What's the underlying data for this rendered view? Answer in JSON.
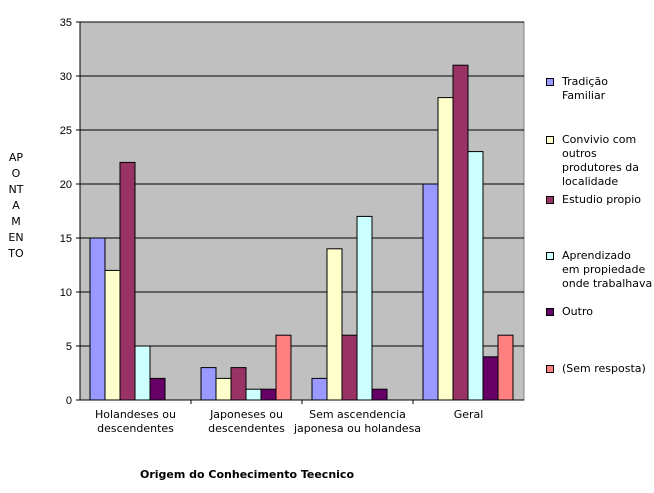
{
  "chart_data": {
    "type": "bar",
    "title": "",
    "xlabel": "Origem do Conhecimento Teecnico",
    "ylabel": "APONTAMENTO",
    "ylim": [
      0,
      35
    ],
    "yticks": [
      0,
      5,
      10,
      15,
      20,
      25,
      30,
      35
    ],
    "grid": true,
    "legend_position": "right",
    "plot_background": "#c0c0c0",
    "categories": [
      [
        "Holandeses ou",
        "descendentes"
      ],
      [
        "Japoneses ou",
        "descendentes"
      ],
      [
        "Sem ascendencia",
        "japonesa ou holandesa"
      ],
      [
        "Geral"
      ]
    ],
    "series": [
      {
        "name": [
          "Tradição",
          "Familiar"
        ],
        "color": "#9999ff",
        "values": [
          15,
          3,
          2,
          20
        ]
      },
      {
        "name": [
          "Convivio com",
          "outros",
          "produtores da",
          "localidade"
        ],
        "color": "#ffffcc",
        "values": [
          12,
          2,
          14,
          28
        ]
      },
      {
        "name": [
          "Estudio propio"
        ],
        "color": "#993366",
        "values": [
          22,
          3,
          6,
          31
        ]
      },
      {
        "name": [
          "Aprendizado",
          "em propiedade",
          "onde trabalhava"
        ],
        "color": "#ccffff",
        "values": [
          5,
          1,
          17,
          23
        ]
      },
      {
        "name": [
          "Outro"
        ],
        "color": "#660066",
        "values": [
          2,
          1,
          1,
          4
        ]
      },
      {
        "name": [
          "(Sem resposta)"
        ],
        "color": "#ff8080",
        "values": [
          0,
          6,
          0,
          6
        ]
      }
    ]
  }
}
